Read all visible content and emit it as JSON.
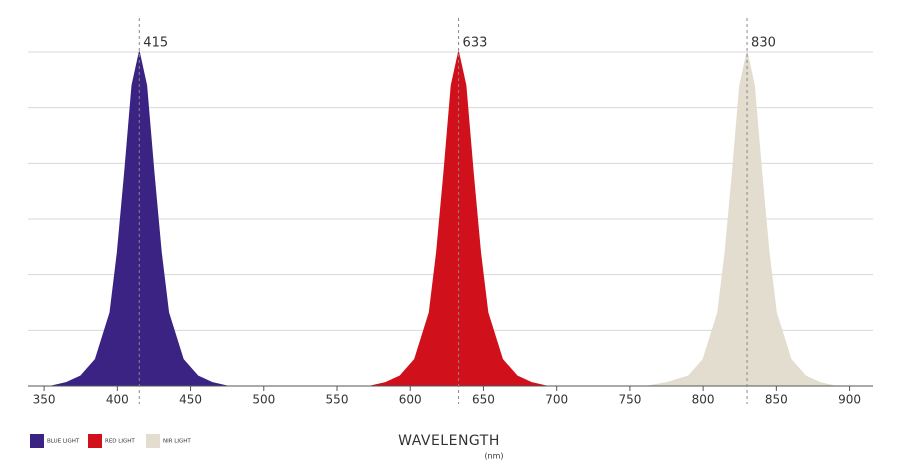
{
  "chart_data": {
    "type": "area",
    "xlabel": "WAVELENGTH",
    "xunit": "(nm)",
    "xlim": [
      339,
      916
    ],
    "xticks": [
      350,
      400,
      450,
      500,
      550,
      600,
      650,
      700,
      750,
      800,
      850,
      900
    ],
    "ylim": [
      0,
      1
    ],
    "yticks": [
      0,
      0.1667,
      0.3333,
      0.5,
      0.6667,
      0.8333,
      1
    ],
    "grid": true,
    "markers": [
      415,
      633,
      830
    ],
    "series": [
      {
        "name": "BLUE LIGHT",
        "color": "#3a2383",
        "x": [
          355,
          365,
          375,
          385,
          395,
          400,
          405,
          410,
          415,
          420,
          425,
          430,
          435,
          445,
          455,
          465,
          475
        ],
        "values": [
          0,
          0.01,
          0.03,
          0.08,
          0.22,
          0.4,
          0.64,
          0.9,
          1,
          0.9,
          0.64,
          0.4,
          0.22,
          0.08,
          0.03,
          0.01,
          0
        ]
      },
      {
        "name": "RED LIGHT",
        "color": "#d0101a",
        "x": [
          573,
          583,
          593,
          603,
          613,
          618,
          623,
          628,
          633,
          638,
          643,
          648,
          653,
          663,
          673,
          683,
          693
        ],
        "values": [
          0,
          0.01,
          0.03,
          0.08,
          0.22,
          0.4,
          0.64,
          0.9,
          1,
          0.9,
          0.64,
          0.4,
          0.22,
          0.08,
          0.03,
          0.01,
          0
        ]
      },
      {
        "name": "NIR LIGHT",
        "color": "#e3ddcf",
        "x": [
          762,
          775,
          790,
          800,
          810,
          815,
          820,
          825,
          830,
          835,
          840,
          845,
          850,
          860,
          870,
          880,
          890
        ],
        "values": [
          0,
          0.01,
          0.03,
          0.08,
          0.22,
          0.4,
          0.64,
          0.9,
          1,
          0.9,
          0.64,
          0.4,
          0.22,
          0.08,
          0.03,
          0.01,
          0
        ]
      }
    ]
  }
}
